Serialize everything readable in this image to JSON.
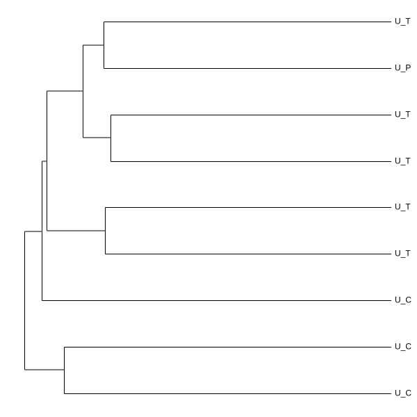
{
  "leaves": [
    {
      "label": "U_T"
    },
    {
      "label": "U_P"
    },
    {
      "label": "U_T"
    },
    {
      "label": "U_T"
    },
    {
      "label": "U_T"
    },
    {
      "label": "U_T"
    },
    {
      "label": "U_C"
    },
    {
      "label": "U_C"
    },
    {
      "label": "U_C"
    }
  ]
}
